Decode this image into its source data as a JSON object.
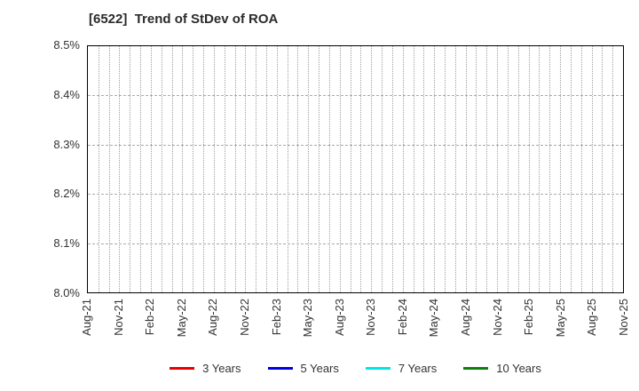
{
  "chart_data": {
    "type": "line",
    "title": "[6522]  Trend of StDev of ROA",
    "xlabel": "",
    "ylabel": "",
    "ylim": [
      8.0,
      8.5
    ],
    "yticks": [
      "8.5%",
      "8.4%",
      "8.3%",
      "8.2%",
      "8.1%",
      "8.0%"
    ],
    "xticks": [
      "Aug-21",
      "Nov-21",
      "Feb-22",
      "May-22",
      "Aug-22",
      "Nov-22",
      "Feb-23",
      "May-23",
      "Aug-23",
      "Nov-23",
      "Feb-24",
      "May-24",
      "Aug-24",
      "Nov-24",
      "Feb-25",
      "May-25",
      "Aug-25",
      "Nov-25"
    ],
    "x_tick_interval_months": 3,
    "x_total_month_intervals": 51,
    "grid": true,
    "grid_vertical_style": "dotted-monthly",
    "grid_horizontal_style": "dashed",
    "legend_position": "bottom-center",
    "series": [
      {
        "name": "3 Years",
        "color": "#e60000",
        "values": []
      },
      {
        "name": "5 Years",
        "color": "#0000dd",
        "values": []
      },
      {
        "name": "7 Years",
        "color": "#00e6e6",
        "values": []
      },
      {
        "name": "10 Years",
        "color": "#0d800d",
        "values": []
      }
    ]
  }
}
